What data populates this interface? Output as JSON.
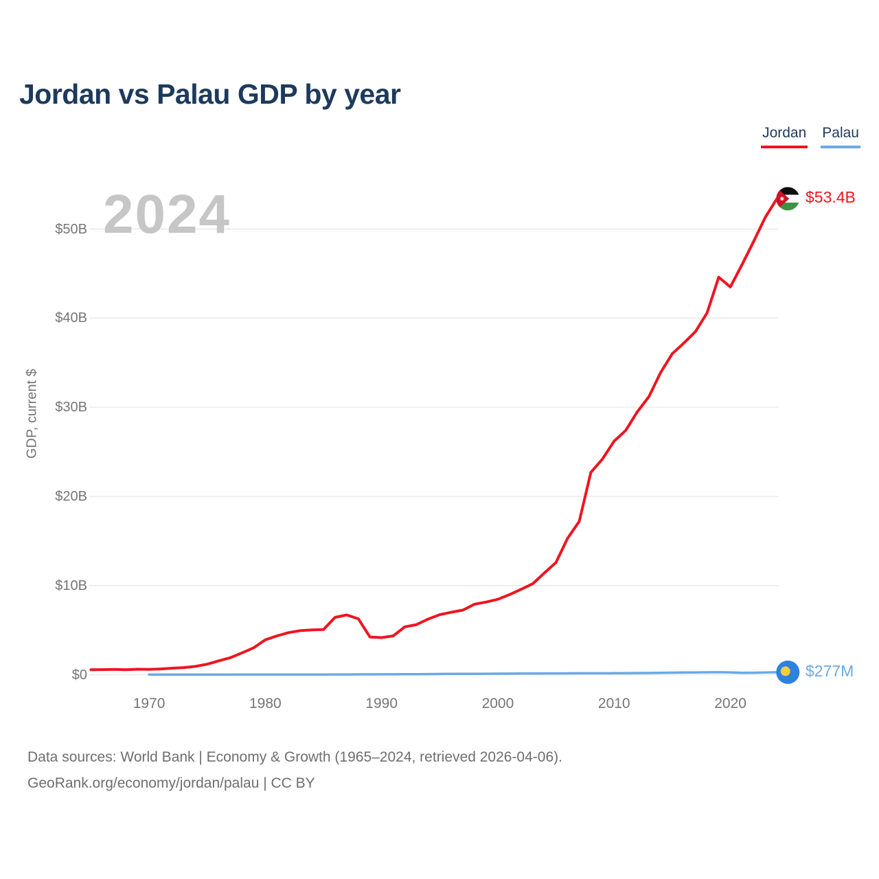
{
  "page": {
    "background": "#ffffff"
  },
  "title": "Jordan vs Palau GDP by year",
  "watermark": "2024",
  "legend": [
    {
      "label": "Jordan",
      "color": "#ef1420"
    },
    {
      "label": "Palau",
      "color": "#69aae6"
    }
  ],
  "footer": {
    "line1": "Data sources: World Bank | Economy & Growth (1965–2024, retrieved 2026-04-06).",
    "line2": "GeoRank.org/economy/jordan/palau | CC BY"
  },
  "colors": {
    "title_navy": "#1d3a5c",
    "tick_gray": "#757575",
    "gridline": "#e9e9e9",
    "watermark_gray": "#c6c6c6",
    "footer_gray": "#6e6e6e",
    "jordan_red": "#ef1420",
    "palau_blue": "#69aae6",
    "jordan_flag": {
      "black": "#0d0d0d",
      "white": "#ffffff",
      "green": "#3f9144",
      "red": "#ce1126",
      "star": "#ffffff"
    },
    "palau_flag": {
      "blue": "#2d82e1",
      "yellow": "#f5cd3c"
    }
  },
  "chart_data": {
    "type": "line",
    "title": "Jordan vs Palau GDP by year",
    "ylabel": "GDP, current $",
    "xlabel": "",
    "grid": "horizontal-only",
    "legend_position": "top-right",
    "watermark_year": "2024",
    "xlim": [
      1965,
      2024
    ],
    "ylim_billions": [
      0,
      55
    ],
    "x_axis": {
      "ticks": [
        1970,
        1980,
        1990,
        2000,
        2010,
        2020
      ]
    },
    "y_axis": {
      "title": "GDP, current $",
      "ticks": [
        {
          "value_billions": 0,
          "label": "$0"
        },
        {
          "value_billions": 10,
          "label": "$10B"
        },
        {
          "value_billions": 20,
          "label": "$20B"
        },
        {
          "value_billions": 30,
          "label": "$30B"
        },
        {
          "value_billions": 40,
          "label": "$40B"
        },
        {
          "value_billions": 50,
          "label": "$50B"
        }
      ]
    },
    "series": [
      {
        "name": "Jordan",
        "color": "#ef1420",
        "end_label": "$53.4B",
        "end_value_billions": 53.4,
        "flag": "jordan",
        "unit": "USD_billions",
        "line_width": 4,
        "data": [
          [
            1965,
            0.56
          ],
          [
            1966,
            0.57
          ],
          [
            1967,
            0.6
          ],
          [
            1968,
            0.56
          ],
          [
            1969,
            0.62
          ],
          [
            1970,
            0.6
          ],
          [
            1971,
            0.65
          ],
          [
            1972,
            0.73
          ],
          [
            1973,
            0.8
          ],
          [
            1974,
            0.93
          ],
          [
            1975,
            1.18
          ],
          [
            1976,
            1.56
          ],
          [
            1977,
            1.91
          ],
          [
            1978,
            2.45
          ],
          [
            1979,
            3.02
          ],
          [
            1980,
            3.91
          ],
          [
            1981,
            4.35
          ],
          [
            1982,
            4.72
          ],
          [
            1983,
            4.94
          ],
          [
            1984,
            5.03
          ],
          [
            1985,
            5.07
          ],
          [
            1986,
            6.43
          ],
          [
            1987,
            6.7
          ],
          [
            1988,
            6.27
          ],
          [
            1989,
            4.23
          ],
          [
            1990,
            4.16
          ],
          [
            1991,
            4.35
          ],
          [
            1992,
            5.37
          ],
          [
            1993,
            5.62
          ],
          [
            1994,
            6.24
          ],
          [
            1995,
            6.73
          ],
          [
            1996,
            7.0
          ],
          [
            1997,
            7.25
          ],
          [
            1998,
            7.91
          ],
          [
            1999,
            8.15
          ],
          [
            2000,
            8.46
          ],
          [
            2001,
            8.98
          ],
          [
            2002,
            9.58
          ],
          [
            2003,
            10.2
          ],
          [
            2004,
            11.41
          ],
          [
            2005,
            12.59
          ],
          [
            2006,
            15.3
          ],
          [
            2007,
            17.2
          ],
          [
            2008,
            22.7
          ],
          [
            2009,
            24.2
          ],
          [
            2010,
            26.2
          ],
          [
            2011,
            27.4
          ],
          [
            2012,
            29.5
          ],
          [
            2013,
            31.2
          ],
          [
            2014,
            33.9
          ],
          [
            2015,
            36.0
          ],
          [
            2016,
            37.2
          ],
          [
            2017,
            38.5
          ],
          [
            2018,
            40.6
          ],
          [
            2019,
            44.6
          ],
          [
            2020,
            43.5
          ],
          [
            2021,
            46.0
          ],
          [
            2022,
            48.6
          ],
          [
            2023,
            51.3
          ],
          [
            2024,
            53.4
          ]
        ]
      },
      {
        "name": "Palau",
        "color": "#69aae6",
        "end_label": "$277M",
        "end_value_millions": 277,
        "flag": "palau",
        "unit": "USD_millions",
        "line_width": 3.5,
        "data": [
          [
            1970,
            4
          ],
          [
            1971,
            5
          ],
          [
            1972,
            6
          ],
          [
            1973,
            7
          ],
          [
            1974,
            8
          ],
          [
            1975,
            9
          ],
          [
            1976,
            10
          ],
          [
            1977,
            11
          ],
          [
            1978,
            12
          ],
          [
            1979,
            13
          ],
          [
            1980,
            15
          ],
          [
            1981,
            17
          ],
          [
            1982,
            19
          ],
          [
            1983,
            21
          ],
          [
            1984,
            23
          ],
          [
            1985,
            25
          ],
          [
            1986,
            28
          ],
          [
            1987,
            31
          ],
          [
            1988,
            35
          ],
          [
            1989,
            39
          ],
          [
            1990,
            44
          ],
          [
            1991,
            50
          ],
          [
            1992,
            57
          ],
          [
            1993,
            64
          ],
          [
            1994,
            72
          ],
          [
            1995,
            81
          ],
          [
            1996,
            89
          ],
          [
            1997,
            96
          ],
          [
            1998,
            102
          ],
          [
            1999,
            109
          ],
          [
            2000,
            116
          ],
          [
            2001,
            121
          ],
          [
            2002,
            128
          ],
          [
            2003,
            136
          ],
          [
            2004,
            143
          ],
          [
            2005,
            150
          ],
          [
            2006,
            157
          ],
          [
            2007,
            162
          ],
          [
            2008,
            164
          ],
          [
            2009,
            161
          ],
          [
            2010,
            167
          ],
          [
            2011,
            174
          ],
          [
            2012,
            184
          ],
          [
            2013,
            194
          ],
          [
            2014,
            209
          ],
          [
            2015,
            229
          ],
          [
            2016,
            244
          ],
          [
            2017,
            256
          ],
          [
            2018,
            268
          ],
          [
            2019,
            281
          ],
          [
            2020,
            264
          ],
          [
            2021,
            218
          ],
          [
            2022,
            226
          ],
          [
            2023,
            254
          ],
          [
            2024,
            277
          ]
        ]
      }
    ]
  }
}
